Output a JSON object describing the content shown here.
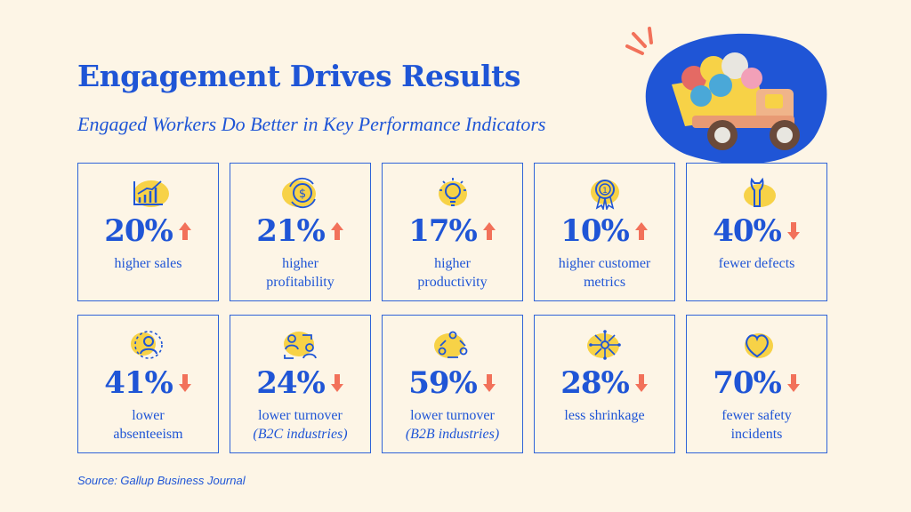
{
  "header": {
    "title": "Engagement Drives Results",
    "subtitle": "Engaged Workers Do Better in Key Performance Indicators"
  },
  "colors": {
    "blue": "#1f55d6",
    "yellow": "#f7d247",
    "arrow": "#f2715a",
    "background": "#fdf5e6"
  },
  "cards": [
    {
      "value": "20%",
      "direction": "up",
      "label_lines": [
        "higher sales"
      ],
      "note": "",
      "icon": "growth-chart-icon"
    },
    {
      "value": "21%",
      "direction": "up",
      "label_lines": [
        "higher",
        "profitability"
      ],
      "note": "",
      "icon": "dollar-cycle-icon"
    },
    {
      "value": "17%",
      "direction": "up",
      "label_lines": [
        "higher",
        "productivity"
      ],
      "note": "",
      "icon": "lightbulb-icon"
    },
    {
      "value": "10%",
      "direction": "up",
      "label_lines": [
        "higher customer",
        "metrics"
      ],
      "note": "",
      "icon": "award-ribbon-icon"
    },
    {
      "value": "40%",
      "direction": "down",
      "label_lines": [
        "fewer defects"
      ],
      "note": "",
      "icon": "wrench-icon"
    },
    {
      "value": "41%",
      "direction": "down",
      "label_lines": [
        "lower",
        "absenteeism"
      ],
      "note": "",
      "icon": "person-icon"
    },
    {
      "value": "24%",
      "direction": "down",
      "label_lines": [
        "lower turnover"
      ],
      "note": "(B2C industries)",
      "icon": "people-exchange-icon"
    },
    {
      "value": "59%",
      "direction": "down",
      "label_lines": [
        "lower turnover"
      ],
      "note": "(B2B industries)",
      "icon": "team-cycle-icon"
    },
    {
      "value": "28%",
      "direction": "down",
      "label_lines": [
        "less shrinkage"
      ],
      "note": "",
      "icon": "shrink-arrows-icon"
    },
    {
      "value": "70%",
      "direction": "down",
      "label_lines": [
        "fewer safety",
        "incidents"
      ],
      "note": "",
      "icon": "heart-icon"
    }
  ],
  "footer": {
    "source": "Source: Gallup Business Journal"
  }
}
